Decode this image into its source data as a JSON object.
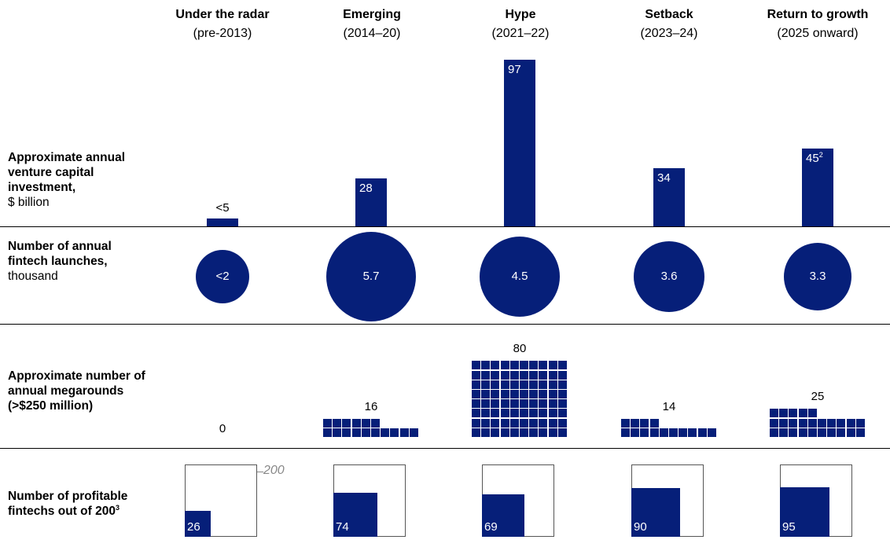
{
  "colors": {
    "primary": "#061F79",
    "frame": "#555555",
    "scale_label": "#888888"
  },
  "phases": [
    {
      "name": "Under the radar",
      "period": "(pre-2013)"
    },
    {
      "name": "Emerging",
      "period": "(2014–20)"
    },
    {
      "name": "Hype",
      "period": "(2021–22)"
    },
    {
      "name": "Setback",
      "period": "(2023–24)"
    },
    {
      "name": "Return to growth",
      "period": "(2025 onward)"
    }
  ],
  "rows": {
    "vc": {
      "title": "Approximate annual venture capital investment,",
      "unit": "$ billion"
    },
    "launches": {
      "title": "Number of annual fintech launches,",
      "unit": "thousand"
    },
    "megarounds": {
      "title": "Approximate number of annual megarounds (>$250 million)"
    },
    "profitable": {
      "title": "Number of profitable fintechs out of 200",
      "title_sup": "3"
    }
  },
  "chart_data": {
    "type": "bar",
    "categories": [
      "Under the radar",
      "Emerging",
      "Hype",
      "Setback",
      "Return to growth"
    ],
    "vc_investment": {
      "values": [
        4,
        28,
        97,
        34,
        45
      ],
      "labels": [
        "<5",
        "28",
        "97",
        "34",
        "45"
      ],
      "label_sups": [
        "",
        "",
        "",
        "",
        "2"
      ]
    },
    "fintech_launches": {
      "values": [
        2,
        5.7,
        4.5,
        3.6,
        3.3
      ],
      "labels": [
        "<2",
        "5.7",
        "4.5",
        "3.6",
        "3.3"
      ]
    },
    "megarounds": {
      "values": [
        0,
        16,
        80,
        14,
        25
      ],
      "labels": [
        "0",
        "16",
        "80",
        "14",
        "25"
      ]
    },
    "profitable_fintechs": {
      "values": [
        26,
        74,
        69,
        90,
        95
      ],
      "labels": [
        "26",
        "74",
        "69",
        "90",
        "95"
      ],
      "total": 200,
      "scale_label": "200"
    }
  }
}
